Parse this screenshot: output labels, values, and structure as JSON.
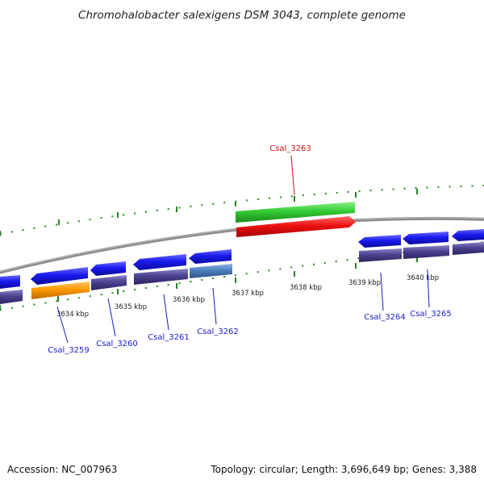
{
  "title": "Chromohalobacter salexigens DSM 3043, complete genome",
  "footer": {
    "accession": "Accession: NC_007963",
    "summary": "Topology: circular; Length: 3,696,649 bp; Genes: 3,388"
  },
  "colors": {
    "forward_cds": "#1a1aee",
    "reverse_cds": "#1a1aee",
    "highlight_gene": "#ee1111",
    "highlight_label": "#cc1111",
    "rna_gene": "#33cc33",
    "gene_label": "#1a1acc",
    "backbone": "#888888",
    "tick": "#228822",
    "track_purple": "#4a4290",
    "track_orange": "#ff9900",
    "track_steelblue": "#4d7fbf"
  },
  "scale_labels": [
    "3634 kbp",
    "3635 kbp",
    "3636 kbp",
    "3637 kbp",
    "3638 kbp",
    "3639 kbp",
    "3640 kbp"
  ],
  "gene_labels": [
    {
      "id": "Csal_3259",
      "highlight": false
    },
    {
      "id": "Csal_3260",
      "highlight": false
    },
    {
      "id": "Csal_3261",
      "highlight": false
    },
    {
      "id": "Csal_3262",
      "highlight": false
    },
    {
      "id": "Csal_3263",
      "highlight": true
    },
    {
      "id": "Csal_3264",
      "highlight": false
    },
    {
      "id": "Csal_3265",
      "highlight": false
    }
  ]
}
